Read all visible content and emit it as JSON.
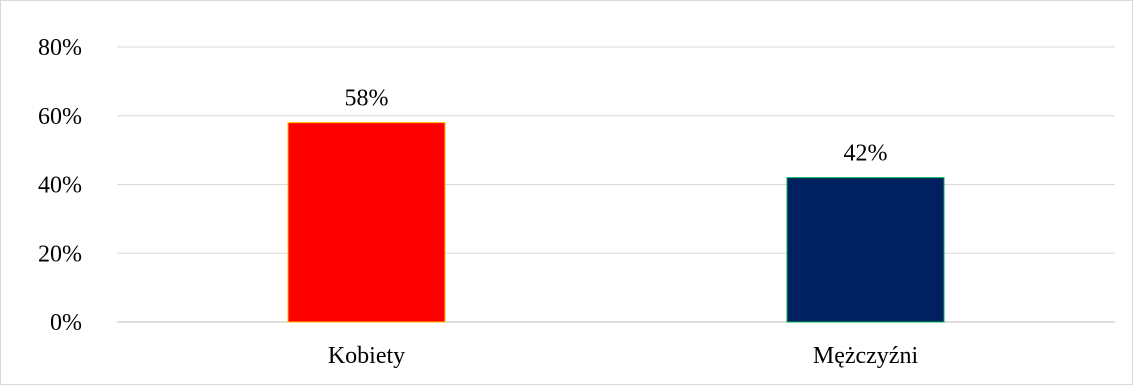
{
  "chart_data": {
    "type": "bar",
    "title": "",
    "xlabel": "",
    "ylabel": "",
    "categories": [
      "Kobiety",
      "Mężczyźni"
    ],
    "values": [
      58,
      42
    ],
    "data_labels": [
      "58%",
      "42%"
    ],
    "bar_colors": [
      "#ff0000",
      "#002060"
    ],
    "bar_outline_colors": [
      "#ffc000",
      "#00b050"
    ],
    "ylim": [
      0,
      80
    ],
    "y_ticks": [
      0,
      20,
      40,
      60,
      80
    ],
    "y_tick_labels": [
      "0%",
      "20%",
      "40%",
      "60%",
      "80%"
    ],
    "grid": true,
    "legend": "none"
  }
}
